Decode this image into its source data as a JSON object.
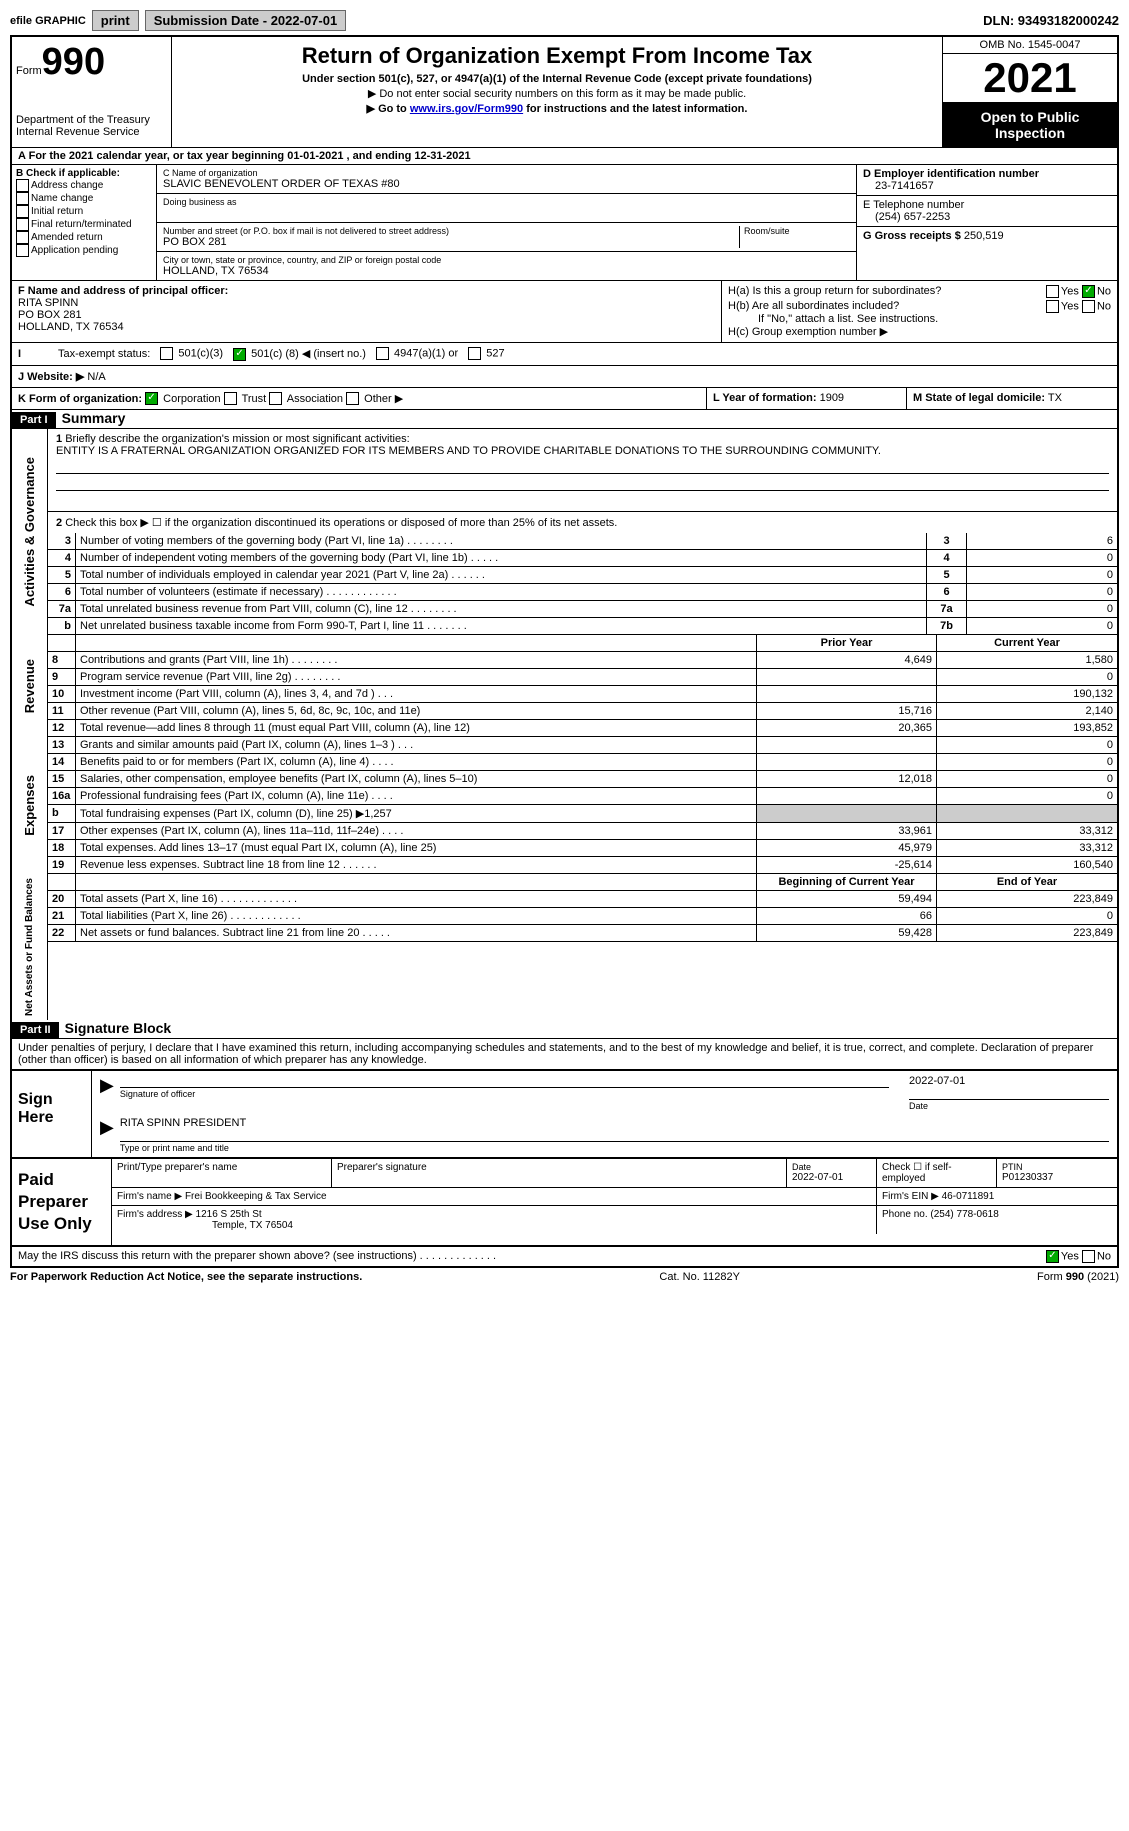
{
  "topbar": {
    "efile": "efile GRAPHIC",
    "print": "print",
    "sub_label": "Submission Date - 2022-07-01",
    "dln": "DLN: 93493182000242"
  },
  "header": {
    "form_small": "Form",
    "form_num": "990",
    "dept": "Department of the Treasury",
    "irs": "Internal Revenue Service",
    "title": "Return of Organization Exempt From Income Tax",
    "sub1": "Under section 501(c), 527, or 4947(a)(1) of the Internal Revenue Code (except private foundations)",
    "sub2": "▶ Do not enter social security numbers on this form as it may be made public.",
    "sub3_pre": "▶ Go to ",
    "sub3_link": "www.irs.gov/Form990",
    "sub3_post": " for instructions and the latest information.",
    "omb": "OMB No. 1545-0047",
    "year": "2021",
    "open": "Open to Public Inspection"
  },
  "lineA": "For the 2021 calendar year, or tax year beginning 01-01-2021    , and ending 12-31-2021",
  "colB": {
    "head": "B Check if applicable:",
    "opts": [
      "Address change",
      "Name change",
      "Initial return",
      "Final return/terminated",
      "Amended return",
      "Application pending"
    ]
  },
  "colC": {
    "name_label": "C Name of organization",
    "name": "SLAVIC BENEVOLENT ORDER OF TEXAS #80",
    "dba_label": "Doing business as",
    "addr_label": "Number and street (or P.O. box if mail is not delivered to street address)",
    "room_label": "Room/suite",
    "addr": "PO BOX 281",
    "city_label": "City or town, state or province, country, and ZIP or foreign postal code",
    "city": "HOLLAND, TX  76534"
  },
  "colD": {
    "ein_label": "D Employer identification number",
    "ein": "23-7141657",
    "tel_label": "E Telephone number",
    "tel": "(254) 657-2253",
    "gross_label": "G Gross receipts $",
    "gross": "250,519"
  },
  "secF": {
    "label": "F  Name and address of principal officer:",
    "name": "RITA SPINN",
    "addr1": "PO BOX 281",
    "addr2": "HOLLAND, TX  76534"
  },
  "secH": {
    "ha": "H(a)  Is this a group return for subordinates?",
    "hb": "H(b)  Are all subordinates included?",
    "hb_note": "If \"No,\" attach a list. See instructions.",
    "hc": "H(c)  Group exemption number ▶",
    "yes": "Yes",
    "no": "No"
  },
  "lineI": {
    "label": "Tax-exempt status:",
    "o1": "501(c)(3)",
    "o2_pre": "501(c) (",
    "o2_num": "8",
    "o2_post": ") ◀ (insert no.)",
    "o3": "4947(a)(1) or",
    "o4": "527"
  },
  "lineJ": {
    "label": "J   Website: ▶",
    "val": "N/A"
  },
  "lineK": {
    "label": "K Form of organization:",
    "o1": "Corporation",
    "o2": "Trust",
    "o3": "Association",
    "o4": "Other ▶"
  },
  "lineL": {
    "label": "L Year of formation:",
    "val": "1909"
  },
  "lineM": {
    "label": "M State of legal domicile:",
    "val": "TX"
  },
  "part1": {
    "tag": "Part I",
    "title": "Summary",
    "l1_label": "Briefly describe the organization's mission or most significant activities:",
    "l1_text": "ENTITY IS A FRATERNAL ORGANIZATION ORGANIZED FOR ITS MEMBERS AND TO PROVIDE CHARITABLE DONATIONS TO THE SURROUNDING COMMUNITY.",
    "l2": "Check this box ▶ ☐  if the organization discontinued its operations or disposed of more than 25% of its net assets.",
    "rows_ag": [
      {
        "n": "3",
        "t": "Number of voting members of the governing body (Part VI, line 1a)   .    .    .    .    .    .    .    .",
        "box": "3",
        "v": "6"
      },
      {
        "n": "4",
        "t": "Number of independent voting members of the governing body (Part VI, line 1b)  .    .    .    .    .",
        "box": "4",
        "v": "0"
      },
      {
        "n": "5",
        "t": "Total number of individuals employed in calendar year 2021 (Part V, line 2a)   .    .    .    .    .    .",
        "box": "5",
        "v": "0"
      },
      {
        "n": "6",
        "t": "Total number of volunteers (estimate if necessary)    .    .    .    .    .    .    .    .    .    .    .    .",
        "box": "6",
        "v": "0"
      },
      {
        "n": "7a",
        "t": "Total unrelated business revenue from Part VIII, column (C), line 12   .    .    .    .    .    .    .    .",
        "box": "7a",
        "v": "0"
      },
      {
        "n": "b",
        "t": "Net unrelated business taxable income from Form 990-T, Part I, line 11  .    .    .    .    .    .    .",
        "box": "7b",
        "v": "0"
      }
    ],
    "col_prior": "Prior Year",
    "col_curr": "Current Year",
    "rows_rev": [
      {
        "n": "8",
        "t": "Contributions and grants (Part VIII, line 1h)   .    .    .    .    .    .    .    .",
        "p": "4,649",
        "c": "1,580"
      },
      {
        "n": "9",
        "t": "Program service revenue (Part VIII, line 2g)   .    .    .    .    .    .    .    .",
        "p": "",
        "c": "0"
      },
      {
        "n": "10",
        "t": "Investment income (Part VIII, column (A), lines 3, 4, and 7d )   .    .    .",
        "p": "",
        "c": "190,132"
      },
      {
        "n": "11",
        "t": "Other revenue (Part VIII, column (A), lines 5, 6d, 8c, 9c, 10c, and 11e)",
        "p": "15,716",
        "c": "2,140"
      },
      {
        "n": "12",
        "t": "Total revenue—add lines 8 through 11 (must equal Part VIII, column (A), line 12)",
        "p": "20,365",
        "c": "193,852"
      }
    ],
    "rows_exp": [
      {
        "n": "13",
        "t": "Grants and similar amounts paid (Part IX, column (A), lines 1–3 )  .    .    .",
        "p": "",
        "c": "0"
      },
      {
        "n": "14",
        "t": "Benefits paid to or for members (Part IX, column (A), line 4)  .    .    .    .",
        "p": "",
        "c": "0"
      },
      {
        "n": "15",
        "t": "Salaries, other compensation, employee benefits (Part IX, column (A), lines 5–10)",
        "p": "12,018",
        "c": "0"
      },
      {
        "n": "16a",
        "t": "Professional fundraising fees (Part IX, column (A), line 11e)  .    .    .    .",
        "p": "",
        "c": "0"
      },
      {
        "n": "b",
        "t": "Total fundraising expenses (Part IX, column (D), line 25) ▶1,257",
        "p": "SHADE",
        "c": "SHADE"
      },
      {
        "n": "17",
        "t": "Other expenses (Part IX, column (A), lines 11a–11d, 11f–24e)  .    .    .    .",
        "p": "33,961",
        "c": "33,312"
      },
      {
        "n": "18",
        "t": "Total expenses. Add lines 13–17 (must equal Part IX, column (A), line 25)",
        "p": "45,979",
        "c": "33,312"
      },
      {
        "n": "19",
        "t": "Revenue less expenses. Subtract line 18 from line 12  .    .    .    .    .    .",
        "p": "-25,614",
        "c": "160,540"
      }
    ],
    "col_begin": "Beginning of Current Year",
    "col_end": "End of Year",
    "rows_net": [
      {
        "n": "20",
        "t": "Total assets (Part X, line 16)  .    .    .    .    .    .    .    .    .    .    .    .    .",
        "p": "59,494",
        "c": "223,849"
      },
      {
        "n": "21",
        "t": "Total liabilities (Part X, line 26)  .    .    .    .    .    .    .    .    .    .    .    .",
        "p": "66",
        "c": "0"
      },
      {
        "n": "22",
        "t": "Net assets or fund balances. Subtract line 21 from line 20  .    .    .    .    .",
        "p": "59,428",
        "c": "223,849"
      }
    ],
    "side_ag": "Activities & Governance",
    "side_rev": "Revenue",
    "side_exp": "Expenses",
    "side_net": "Net Assets or Fund Balances"
  },
  "part2": {
    "tag": "Part II",
    "title": "Signature Block",
    "decl": "Under penalties of perjury, I declare that I have examined this return, including accompanying schedules and statements, and to the best of my knowledge and belief, it is true, correct, and complete. Declaration of preparer (other than officer) is based on all information of which preparer has any knowledge.",
    "sign_here": "Sign Here",
    "sig_officer": "Signature of officer",
    "sig_date": "2022-07-01",
    "date_label": "Date",
    "officer_name": "RITA SPINN  PRESIDENT",
    "name_title": "Type or print name and title",
    "paid": "Paid Preparer Use Only",
    "prep_name_label": "Print/Type preparer's name",
    "prep_sig_label": "Preparer's signature",
    "prep_date_label": "Date",
    "prep_date": "2022-07-01",
    "check_se": "Check ☐ if self-employed",
    "ptin_label": "PTIN",
    "ptin": "P01230337",
    "firm_name_label": "Firm's name     ▶",
    "firm_name": "Frei Bookkeeping & Tax Service",
    "firm_ein_label": "Firm's EIN ▶",
    "firm_ein": "46-0711891",
    "firm_addr_label": "Firm's address ▶",
    "firm_addr1": "1216 S 25th St",
    "firm_addr2": "Temple, TX  76504",
    "phone_label": "Phone no.",
    "phone": "(254) 778-0618",
    "discuss": "May the IRS discuss this return with the preparer shown above? (see instructions)   .    .    .    .    .    .    .    .    .    .    .    .    .",
    "yes": "Yes",
    "no": "No"
  },
  "footer": {
    "left": "For Paperwork Reduction Act Notice, see the separate instructions.",
    "mid": "Cat. No. 11282Y",
    "right": "Form 990 (2021)"
  }
}
